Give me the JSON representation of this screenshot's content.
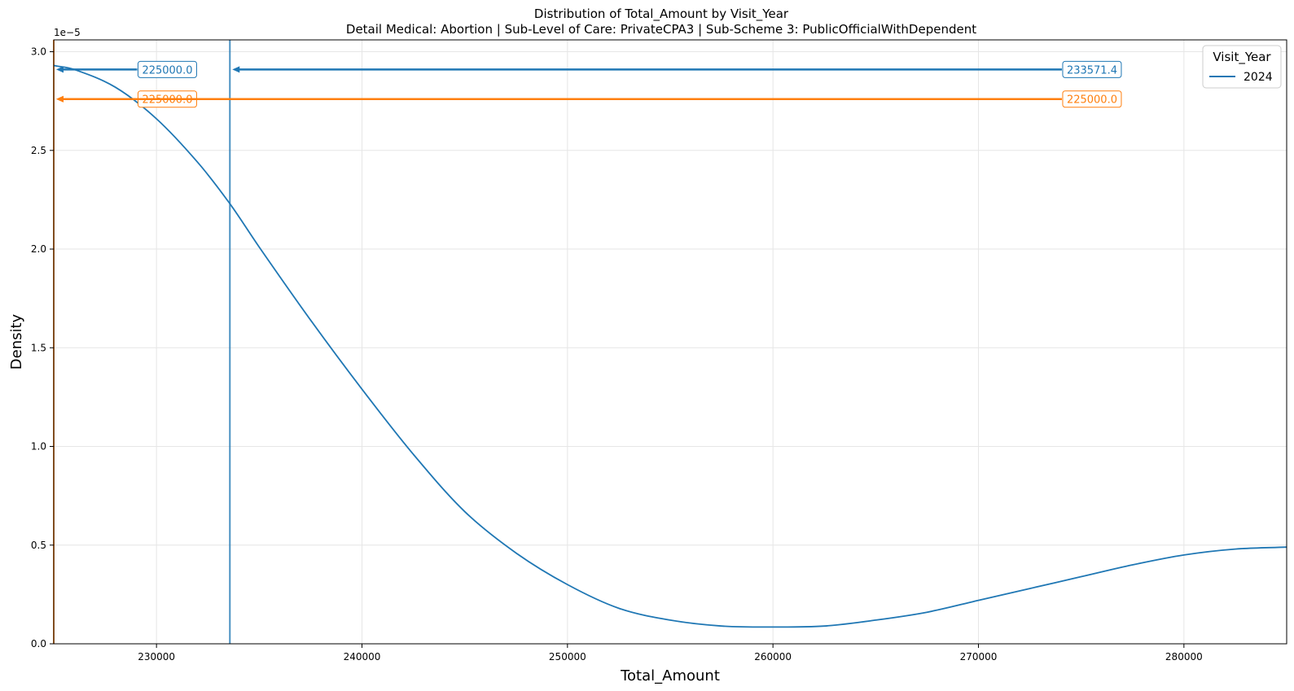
{
  "chart_data": {
    "type": "line",
    "title": "Distribution of Total_Amount by Visit_Year",
    "subtitle": "Detail Medical: Abortion | Sub-Level of Care: PrivateCPA3 | Sub-Scheme 3: PublicOfficialWithDependent",
    "xlabel": "Total_Amount",
    "ylabel": "Density",
    "y_scale_note": "1e−5",
    "xlim": [
      225000,
      285000
    ],
    "ylim": [
      0,
      3.06
    ],
    "xticks": [
      230000,
      240000,
      250000,
      260000,
      270000,
      280000
    ],
    "xtick_labels": [
      "230000",
      "240000",
      "250000",
      "260000",
      "270000",
      "280000"
    ],
    "yticks": [
      0,
      0.5,
      1.0,
      1.5,
      2.0,
      2.5,
      3.0
    ],
    "ytick_labels": [
      "0.0",
      "0.5",
      "1.0",
      "1.5",
      "2.0",
      "2.5",
      "3.0"
    ],
    "grid": true,
    "legend": {
      "title": "Visit_Year",
      "placement": "top-right",
      "entries": [
        "2024"
      ]
    },
    "series": [
      {
        "name": "2024",
        "color": "#1f77b4",
        "x": [
          225000,
          226000,
          228000,
          230000,
          232000,
          233571.4,
          235000,
          237500,
          240000,
          242500,
          245000,
          247500,
          250000,
          252500,
          255000,
          257500,
          260000,
          262500,
          265000,
          267500,
          270000,
          272500,
          275000,
          277500,
          280000,
          282500,
          285000
        ],
        "y": [
          2.93,
          2.91,
          2.82,
          2.66,
          2.44,
          2.23,
          2.01,
          1.64,
          1.29,
          0.96,
          0.67,
          0.46,
          0.3,
          0.18,
          0.12,
          0.09,
          0.085,
          0.09,
          0.12,
          0.16,
          0.22,
          0.28,
          0.34,
          0.4,
          0.45,
          0.48,
          0.49
        ]
      }
    ],
    "reference_lines": [
      {
        "type": "vertical",
        "x": 233571.4,
        "color": "#1f77b4"
      },
      {
        "type": "vertical",
        "x": 225000,
        "color": "#ff7f0e"
      }
    ],
    "annotations": [
      {
        "text": "225000.0",
        "color": "#1f77b4",
        "label_x": 229100,
        "arrow_to_x": 225000,
        "y": 2.91
      },
      {
        "text": "233571.4",
        "color": "#1f77b4",
        "label_x": 274100,
        "arrow_to_x": 233571.4,
        "y": 2.91
      },
      {
        "text": "225000.0",
        "color": "#ff7f0e",
        "label_x": 229100,
        "arrow_to_x": 225000,
        "y": 2.76
      },
      {
        "text": "225000.0",
        "color": "#ff7f0e",
        "label_x": 274100,
        "arrow_to_x": 225000,
        "y": 2.76
      }
    ]
  }
}
